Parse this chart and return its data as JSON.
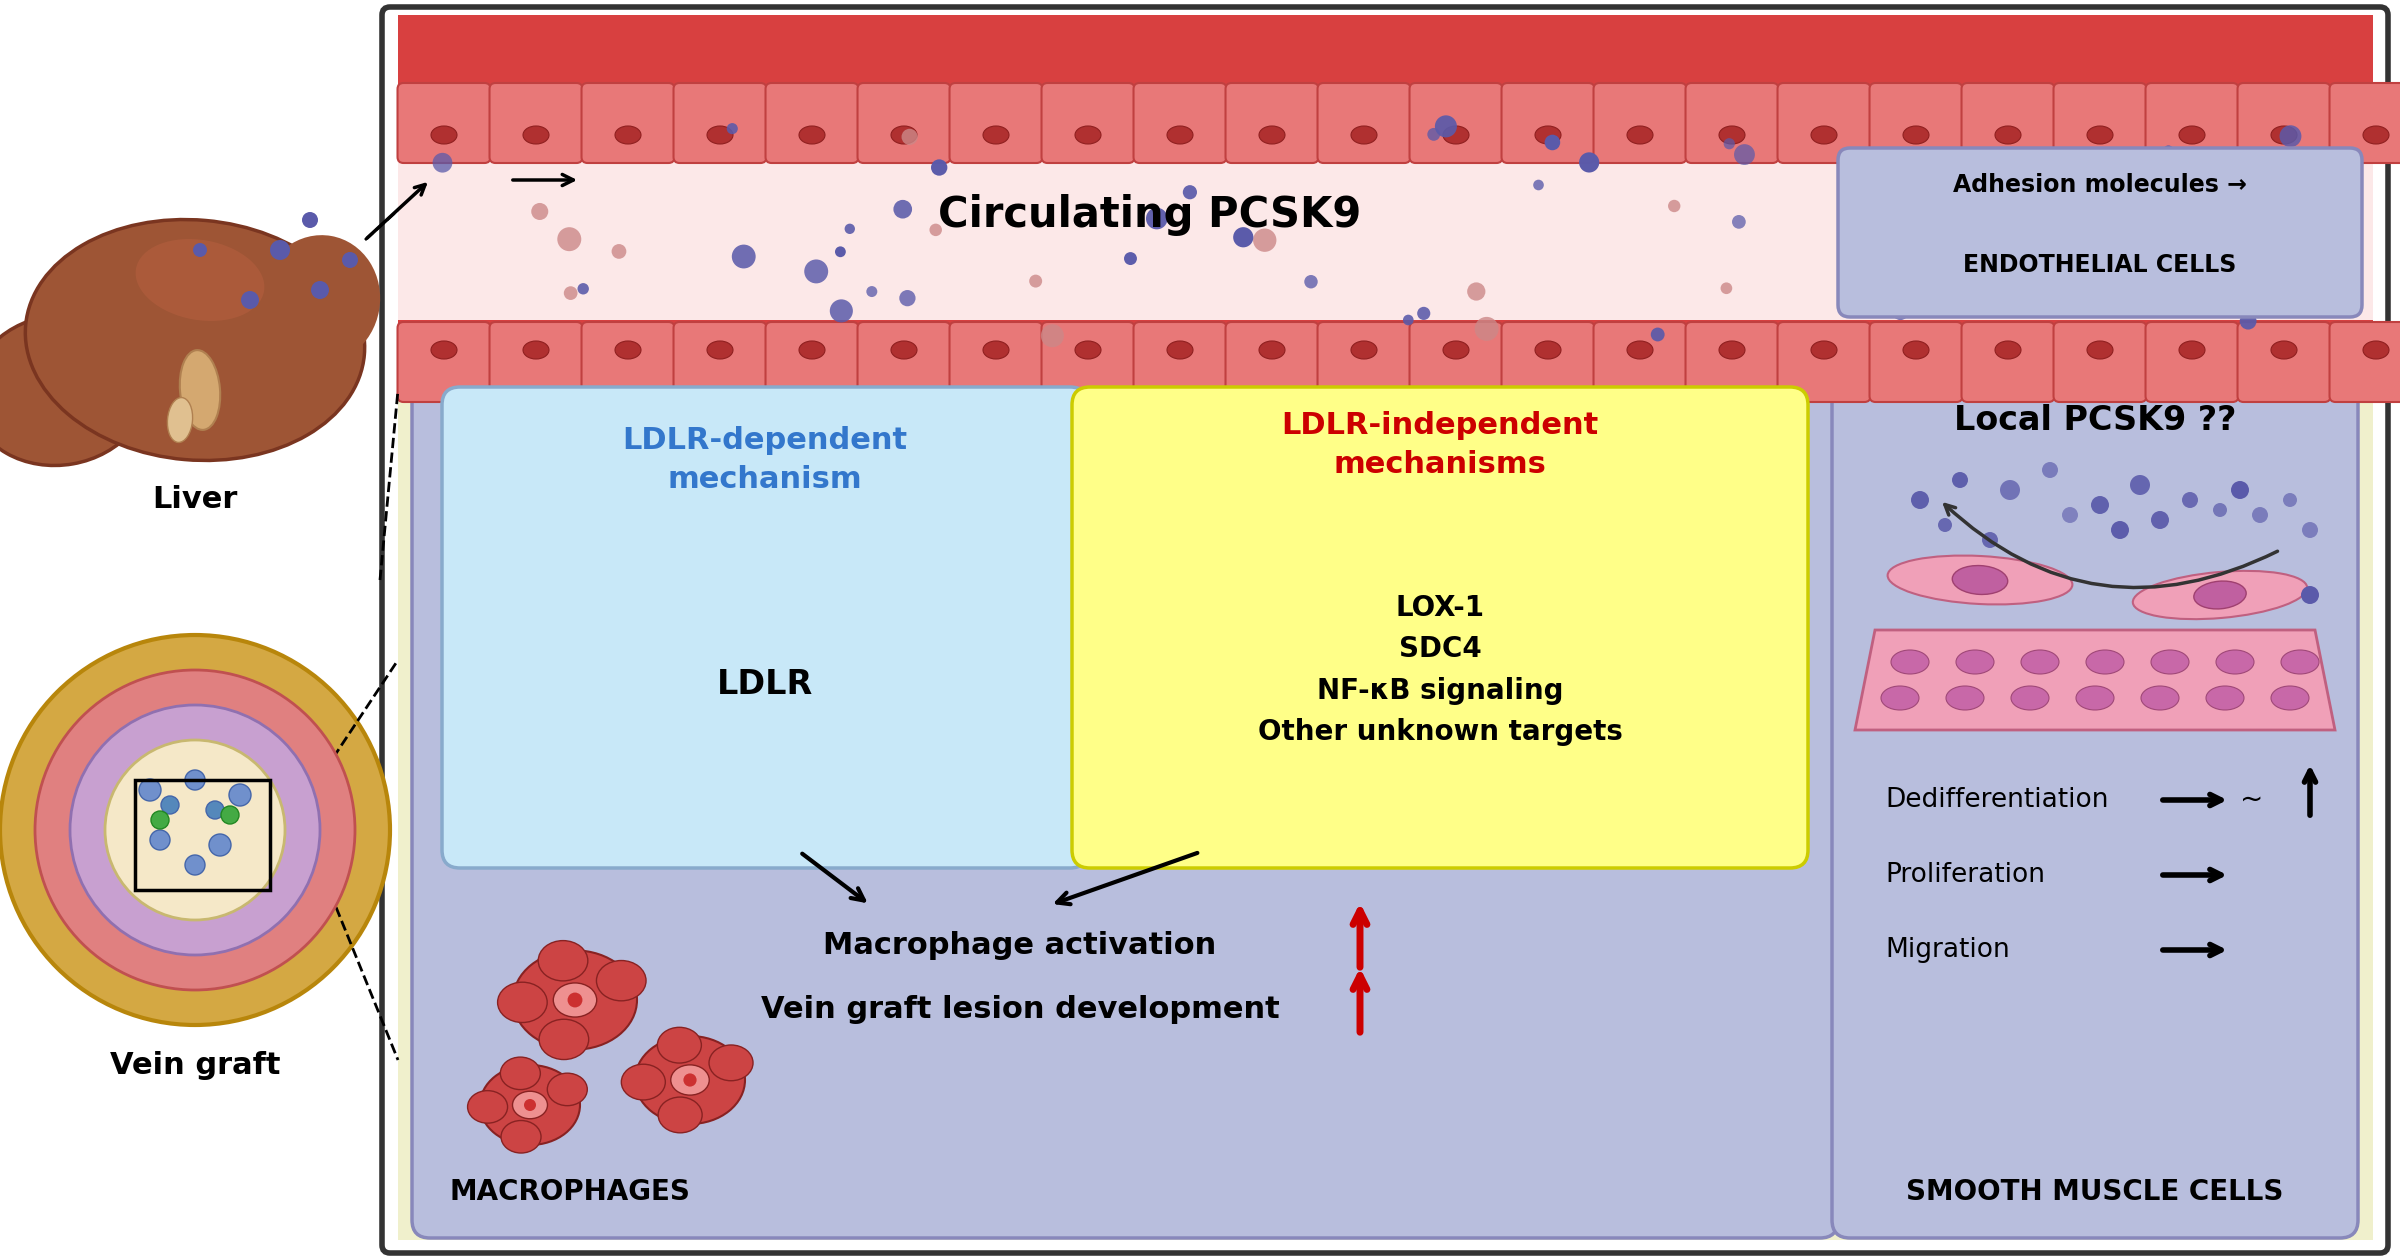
{
  "title_text": "Circulating PCSK9",
  "pcsk9_dot_blue": "#5a5aaa",
  "pcsk9_dot_pink": "#cc8888",
  "lumen_bg": "#fce8e8",
  "vessel_wall_top": "#e06060",
  "vessel_wall_bot": "#e06060",
  "endo_cell_fill": "#e87878",
  "endo_cell_edge": "#c04040",
  "endo_nucleus": "#b03030",
  "main_bg": "#f0f0cc",
  "macro_box_bg": "#b8bedd",
  "macro_box_edge": "#8888bb",
  "ldlr_dep_bg": "#c8e8f8",
  "ldlr_dep_edge": "#88aacc",
  "ldlr_indep_bg": "#ffff88",
  "ldlr_indep_edge": "#cccc00",
  "smc_box_bg": "#b8bedd",
  "smc_box_edge": "#8888bb",
  "adhesion_box_bg": "#b8bedd",
  "adhesion_box_edge": "#8888bb",
  "ldlr_dep_title": "LDLR-dependent\nmechanism",
  "ldlr_dep_color": "#3377cc",
  "ldlr_dep_content": "LDLR",
  "ldlr_indep_title": "LDLR-independent\nmechanisms",
  "ldlr_indep_color": "#cc0000",
  "ldlr_indep_content": "LOX-1\nSDC4\nNF-κB signaling\nOther unknown targets",
  "macro_text1": "Macrophage activation",
  "macro_text2": "Vein graft lesion development",
  "macro_label": "MACROPHAGES",
  "smc_title": "Local PCSK9 ??",
  "smc_dediff": "Dedifferentiation",
  "smc_prolif": "Proliferation",
  "smc_migr": "Migration",
  "smc_label": "SMOOTH MUSCLE CELLS",
  "adhesion_line1": "Adhesion molecules →",
  "adhesion_line2": "ENDOTHELIAL CELLS",
  "liver_label": "Liver",
  "vein_label": "Vein graft",
  "macro_cell_fill": "#cc4444",
  "macro_cell_edge": "#882222",
  "smc_cell_fill": "#f0a0b8",
  "smc_cell_edge": "#c06080",
  "liver_fill": "#9e5535",
  "liver_edge": "#7a3520"
}
